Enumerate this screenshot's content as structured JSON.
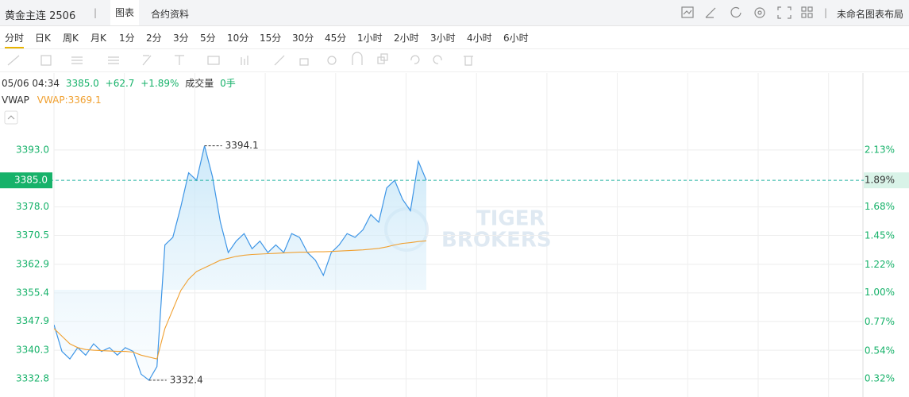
{
  "header": {
    "title": "黄金主连 2506",
    "tabs": [
      "图表",
      "合约资料"
    ],
    "layout_name": "未命名图表布局"
  },
  "timeframes": [
    "分时",
    "日K",
    "周K",
    "月K",
    "1分",
    "2分",
    "3分",
    "5分",
    "10分",
    "15分",
    "30分",
    "45分",
    "1小时",
    "2小时",
    "3小时",
    "4小时",
    "6小时"
  ],
  "info_bar": {
    "time": "05/06 04:34",
    "price": "3385.0",
    "change": "+62.7",
    "percent": "+1.89%",
    "volume_label": "成交量",
    "volume": "0手"
  },
  "indicator": {
    "name": "VWAP",
    "value_label": "VWAP:3369.1"
  },
  "watermark": [
    "TIGER",
    "BROKERS"
  ],
  "chart_data": {
    "type": "line",
    "categories": [
      null,
      null,
      null,
      null,
      null,
      null,
      null,
      null,
      null,
      null,
      null,
      null,
      null,
      null,
      null,
      null,
      null,
      null,
      null,
      null,
      null,
      null,
      null,
      null,
      null,
      null,
      null,
      null,
      null,
      null,
      null,
      null,
      null,
      null,
      null,
      null,
      null,
      null,
      null,
      null,
      null,
      null,
      null,
      null,
      null,
      null,
      null,
      null
    ],
    "series": [
      {
        "name": "Price",
        "color": "#3d95e6",
        "values": [
          3347,
          3340,
          3338,
          3341,
          3339,
          3342,
          3340,
          3341,
          3339,
          3341,
          3340,
          3334,
          3332.4,
          3336,
          3368,
          3370,
          3378,
          3387,
          3385,
          3394.1,
          3386,
          3374,
          3366,
          3369,
          3371,
          3367,
          3369,
          3366,
          3368,
          3366,
          3371,
          3370,
          3366,
          3364,
          3360,
          3366,
          3368,
          3371,
          3370,
          3372,
          3376,
          3374,
          3383,
          3385,
          3380,
          3377,
          3390,
          3385
        ]
      },
      {
        "name": "VWAP",
        "color": "#f0a030",
        "values": [
          3346,
          3344,
          3342,
          3341,
          3340.5,
          3340.3,
          3340.2,
          3340.1,
          3340,
          3340,
          3339.8,
          3339,
          3338.5,
          3338,
          3346,
          3351,
          3356,
          3359,
          3361,
          3362,
          3363,
          3364,
          3364.5,
          3365,
          3365.3,
          3365.5,
          3365.6,
          3365.7,
          3365.8,
          3365.9,
          3366,
          3366.1,
          3366.1,
          3366.2,
          3366.2,
          3366.3,
          3366.4,
          3366.5,
          3366.6,
          3366.7,
          3366.9,
          3367.1,
          3367.5,
          3368,
          3368.4,
          3368.6,
          3368.9,
          3369.1
        ]
      }
    ],
    "annotations": [
      3394.1,
      3332.4
    ],
    "ylim": [
      3328.0,
      3407.8
    ],
    "yticks": [
      {
        "value": 3332.8,
        "label": "3332.8"
      },
      {
        "value": 3340.3,
        "label": "3340.3"
      },
      {
        "value": 3347.9,
        "label": "3347.9"
      },
      {
        "value": 3355.4,
        "label": "3355.4"
      },
      {
        "value": 3362.9,
        "label": "3362.9"
      },
      {
        "value": 3370.5,
        "label": "3370.5"
      },
      {
        "value": 3378.0,
        "label": "3378.0"
      },
      {
        "value": 3393.0,
        "label": "3393.0"
      }
    ],
    "y2lim": [
      0.175,
      2.576
    ],
    "y2ticks": [
      {
        "value": 0.32,
        "label": "0.32%"
      },
      {
        "value": 0.54,
        "label": "0.54%"
      },
      {
        "value": 0.77,
        "label": "0.77%"
      },
      {
        "value": 1.0,
        "label": "1.00%"
      },
      {
        "value": 1.22,
        "label": "1.22%"
      },
      {
        "value": 1.45,
        "label": "1.45%"
      },
      {
        "value": 1.68,
        "label": "1.68%"
      },
      {
        "value": 2.13,
        "label": "2.13%"
      }
    ],
    "current": {
      "value": 3385.0,
      "label": "3385.0"
    },
    "current_pct": {
      "value": 1.89,
      "label": "1.89%"
    },
    "grid": true
  }
}
